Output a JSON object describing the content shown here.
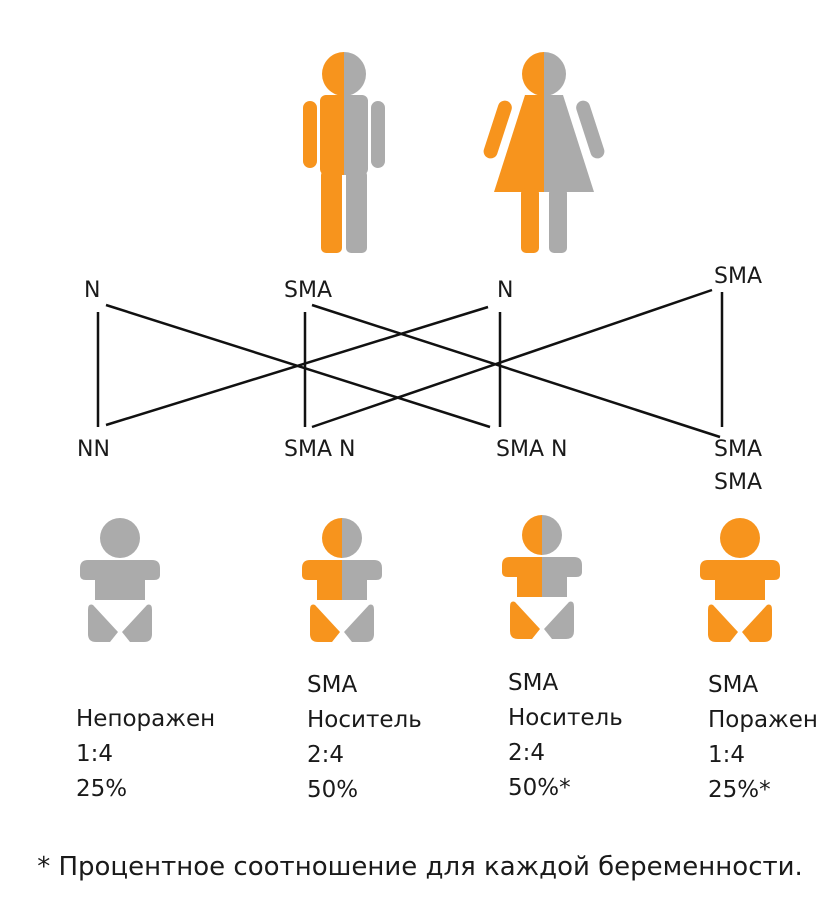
{
  "colors": {
    "orange": "#F7941D",
    "gray": "#ABABAB",
    "line": "#111111"
  },
  "parents": [
    {
      "icon": "male-figure-icon",
      "split": "half-orange-half-gray"
    },
    {
      "icon": "female-figure-icon",
      "split": "half-orange-half-gray"
    }
  ],
  "alleles": {
    "father_n": "N",
    "father_sma": "SMA",
    "mother_n": "N",
    "mother_sma": "SMA"
  },
  "genotypes": {
    "nn": "NN",
    "sma_n_1": "SMA N",
    "sma_n_2": "SMA N",
    "sma_sma_1": "SMA",
    "sma_sma_2": "SMA"
  },
  "children": [
    {
      "icon": "baby-icon",
      "fill": "gray",
      "lines": [
        "Непоражен",
        "1:4",
        "25%"
      ]
    },
    {
      "icon": "baby-icon",
      "fill": "half-orange",
      "lines": [
        "SMA",
        "Носитель",
        "2:4",
        "50%"
      ]
    },
    {
      "icon": "baby-icon",
      "fill": "half-orange",
      "lines": [
        "SMA",
        "Носитель",
        "2:4",
        "50%*"
      ]
    },
    {
      "icon": "baby-icon",
      "fill": "orange",
      "lines": [
        "SMA",
        "Поражен",
        "1:4",
        "25%*"
      ]
    }
  ],
  "footnote": "* Процентное соотношение для каждой беременности."
}
